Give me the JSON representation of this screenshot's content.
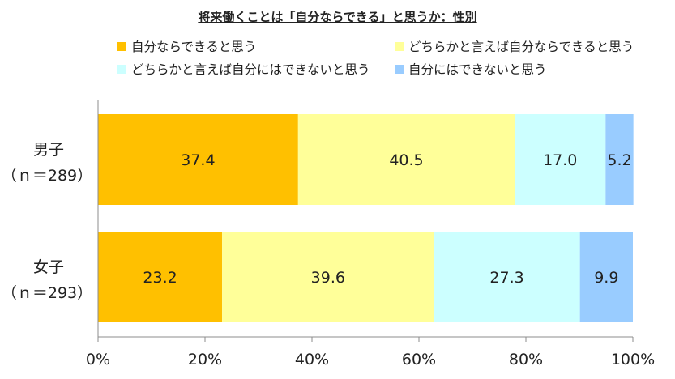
{
  "chart_data": {
    "type": "bar",
    "orientation": "horizontal",
    "stacked": true,
    "title": "将来働くことは「自分ならできる」と思うか：性別",
    "categories": [
      {
        "label": "男子",
        "n": "（ｎ＝289）"
      },
      {
        "label": "女子",
        "n": "（ｎ＝293）"
      }
    ],
    "series": [
      {
        "name": "自分ならできると思う",
        "color": "#FFC000",
        "values": [
          37.4,
          23.2
        ],
        "value_labels": [
          "37.4",
          "23.2"
        ]
      },
      {
        "name": "どちらかと言えば自分ならできると思う",
        "color": "#FFFF99",
        "values": [
          40.5,
          39.6
        ],
        "value_labels": [
          "40.5",
          "39.6"
        ]
      },
      {
        "name": "どちらかと言えば自分にはできないと思う",
        "color": "#CCFFFF",
        "values": [
          17.0,
          27.3
        ],
        "value_labels": [
          "17.0",
          "27.3"
        ]
      },
      {
        "name": "自分にはできないと思う",
        "color": "#99CCFF",
        "values": [
          5.2,
          9.9
        ],
        "value_labels": [
          "5.2",
          "9.9"
        ]
      }
    ],
    "xlim": [
      0,
      100
    ],
    "xticks": [
      "0%",
      "20%",
      "40%",
      "60%",
      "80%",
      "100%"
    ],
    "grid": false,
    "legend_position": "top"
  }
}
